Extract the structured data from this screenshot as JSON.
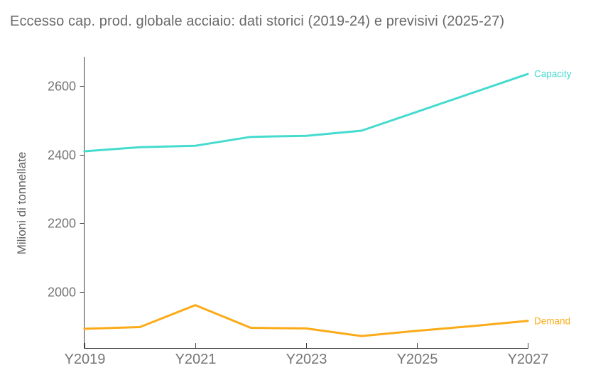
{
  "title": "Eccesso cap. prod. globale acciaio: dati storici (2019-24) e previsivi (2025-27)",
  "y_axis_title": "Milioni di tonnellate",
  "chart_data": {
    "type": "line",
    "title": "Eccesso cap. prod. globale acciaio: dati storici (2019-24) e previsivi (2025-27)",
    "ylabel": "Milioni di tonnellate",
    "xlabel": "",
    "x": [
      2019,
      2020,
      2021,
      2022,
      2023,
      2024,
      2025,
      2026,
      2027
    ],
    "series": [
      {
        "name": "Capacity",
        "color": "#45dbcf",
        "values": [
          2410,
          2422,
          2426,
          2452,
          2455,
          2470,
          2525,
          2580,
          2635
        ]
      },
      {
        "name": "Demand",
        "color": "#fbab18",
        "values": [
          1893,
          1898,
          1962,
          1896,
          1894,
          1872,
          1887,
          1901,
          1916
        ]
      }
    ],
    "x_ticks": [
      2019,
      2021,
      2023,
      2025,
      2027
    ],
    "x_tick_labels": [
      "Y2019",
      "Y2021",
      "Y2023",
      "Y2025",
      "Y2027"
    ],
    "y_ticks": [
      2000,
      2200,
      2400,
      2600
    ],
    "xlim": [
      2019,
      2027
    ],
    "ylim": [
      1837,
      2685
    ],
    "grid": false,
    "legend_position": "line-end-labels"
  },
  "colors": {
    "capacity": "#45dbcf",
    "demand": "#fbab18",
    "title_text": "#6a6a6a",
    "axis_line": "#3f3f3f",
    "tick_label": "#757575",
    "y_axis_title_text": "#616161",
    "background": "#ffffff"
  }
}
